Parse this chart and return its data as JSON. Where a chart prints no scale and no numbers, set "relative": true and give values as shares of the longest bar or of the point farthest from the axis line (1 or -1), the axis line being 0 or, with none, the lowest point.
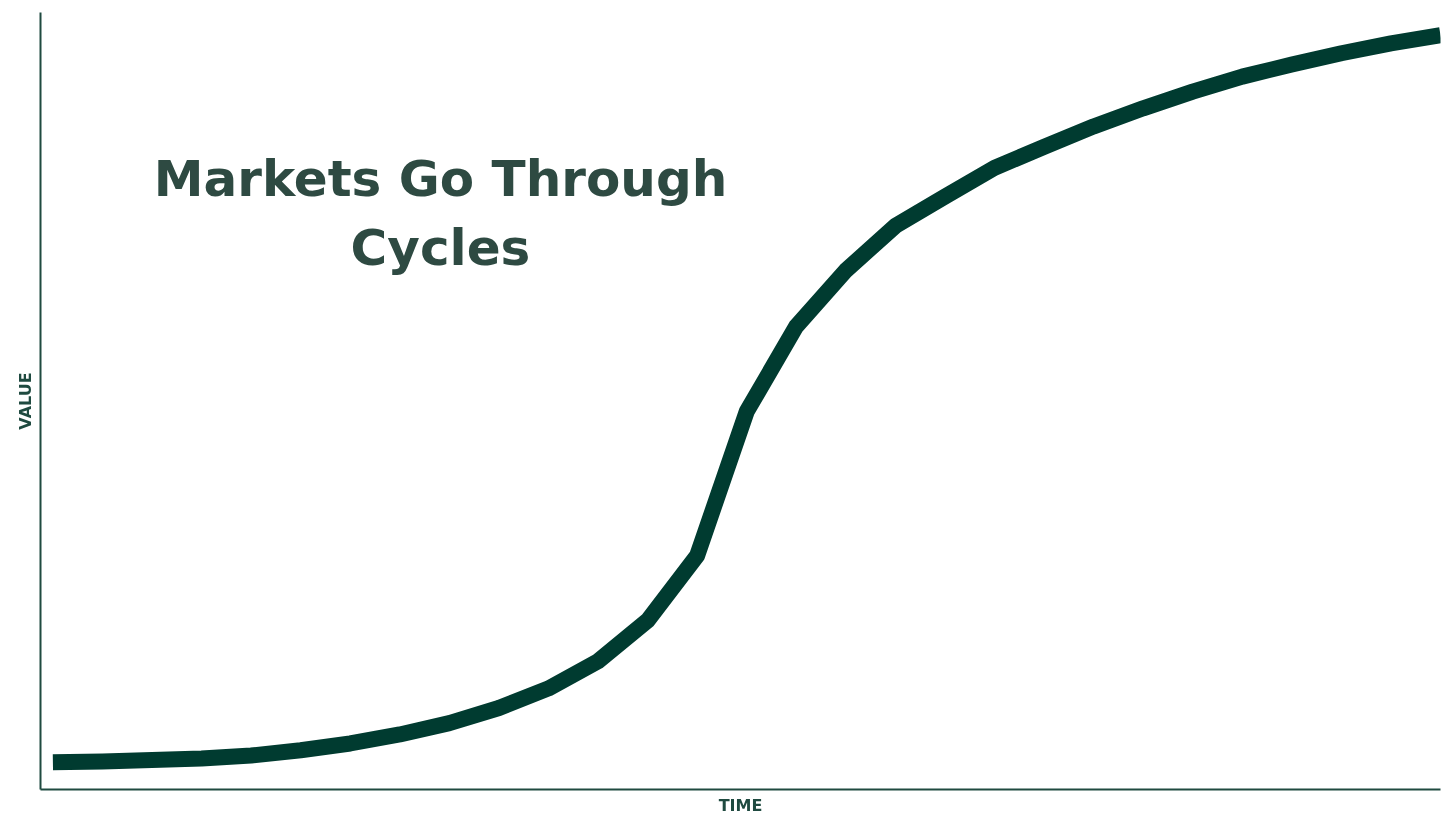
{
  "chart_data": {
    "type": "line",
    "title": "Markets Go Through Cycles",
    "xlabel": "TIME",
    "ylabel": "VALUE",
    "relative": true,
    "categories": [
      null,
      null,
      null,
      null,
      null,
      null,
      null,
      null,
      null,
      null,
      null,
      null,
      null,
      null,
      null,
      null,
      null,
      null,
      null,
      null,
      null,
      null,
      null,
      null,
      null,
      null,
      null,
      null,
      null
    ],
    "series": [
      {
        "color": "#003b30",
        "values": [
          0.036,
          0.037,
          0.039,
          0.041,
          0.045,
          0.052,
          0.061,
          0.073,
          0.088,
          0.108,
          0.134,
          0.17,
          0.224,
          0.31,
          0.501,
          0.614,
          0.688,
          0.747,
          0.786,
          0.824,
          0.852,
          0.879,
          0.903,
          0.925,
          0.945,
          0.961,
          0.976,
          0.989,
          1.0
        ]
      }
    ]
  }
}
